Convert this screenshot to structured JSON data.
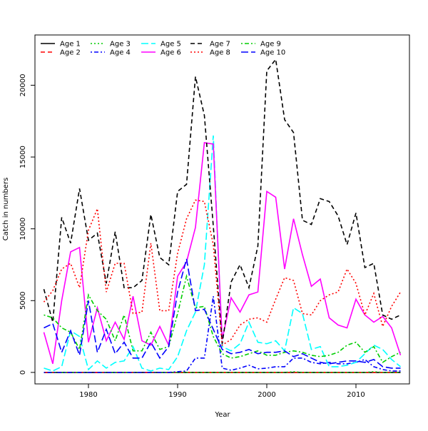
{
  "chart_data": {
    "type": "line",
    "title": "",
    "xlabel": "Year",
    "ylabel": "Catch in numbers",
    "xlim": [
      1974,
      2016
    ],
    "ylim": [
      -800,
      23500
    ],
    "x_ticks": [
      1980,
      1990,
      2000,
      2010
    ],
    "y_ticks": [
      0,
      5000,
      10000,
      15000,
      20000
    ],
    "grid": false,
    "legend_position": "top-left",
    "x": [
      1975,
      1976,
      1977,
      1978,
      1979,
      1980,
      1981,
      1982,
      1983,
      1984,
      1985,
      1986,
      1987,
      1988,
      1989,
      1990,
      1991,
      1992,
      1993,
      1994,
      1995,
      1996,
      1997,
      1998,
      1999,
      2000,
      2001,
      2002,
      2003,
      2004,
      2005,
      2006,
      2007,
      2008,
      2009,
      2010,
      2011,
      2012,
      2013,
      2014,
      2015
    ],
    "series": [
      {
        "name": "Age 1",
        "color": "#000000",
        "dash": "solid",
        "values": [
          0,
          0,
          0,
          0,
          0,
          0,
          0,
          0,
          0,
          0,
          0,
          0,
          0,
          0,
          0,
          0,
          0,
          0,
          0,
          0,
          0,
          0,
          0,
          0,
          0,
          0,
          0,
          0,
          0,
          0,
          0,
          0,
          0,
          0,
          0,
          0,
          0,
          0,
          0,
          0,
          0
        ]
      },
      {
        "name": "Age 2",
        "color": "#ff0000",
        "dash": "dashed",
        "values": [
          0,
          0,
          0,
          0,
          0,
          0,
          0,
          0,
          0,
          0,
          0,
          0,
          0,
          0,
          0,
          0,
          0,
          0,
          0,
          0,
          0,
          0,
          0,
          0,
          0,
          0,
          0,
          0,
          0,
          0,
          0,
          0,
          0,
          0,
          0,
          0,
          0,
          0,
          0,
          0,
          0
        ]
      },
      {
        "name": "Age 3",
        "color": "#00cd00",
        "dash": "dotted",
        "values": [
          0,
          0,
          0,
          0,
          0,
          0,
          0,
          0,
          0,
          0,
          0,
          0,
          0,
          0,
          0,
          0,
          0,
          0,
          0,
          0,
          0,
          0,
          0,
          0,
          0,
          0,
          0,
          0,
          50,
          0,
          0,
          0,
          0,
          0,
          0,
          0,
          0,
          50,
          0,
          0,
          0
        ]
      },
      {
        "name": "Age 4",
        "color": "#0000ff",
        "dash": "dotdash",
        "values": [
          0,
          0,
          0,
          0,
          0,
          0,
          0,
          0,
          0,
          0,
          0,
          0,
          0,
          0,
          0,
          50,
          100,
          1000,
          1000,
          5300,
          300,
          150,
          300,
          500,
          250,
          300,
          400,
          400,
          1000,
          1000,
          700,
          600,
          700,
          600,
          600,
          700,
          900,
          400,
          200,
          100,
          100
        ]
      },
      {
        "name": "Age 5",
        "color": "#00ffff",
        "dash": "longdash",
        "values": [
          300,
          100,
          400,
          2900,
          2500,
          200,
          800,
          300,
          700,
          800,
          1800,
          300,
          100,
          300,
          200,
          1100,
          2900,
          4200,
          7500,
          16500,
          1800,
          1500,
          2000,
          3500,
          2100,
          2000,
          2200,
          1500,
          4500,
          4100,
          1600,
          1800,
          400,
          400,
          500,
          700,
          1300,
          1900,
          1600,
          900,
          400
        ]
      },
      {
        "name": "Age 6",
        "color": "#ff00ff",
        "dash": "solid",
        "values": [
          2800,
          600,
          5000,
          8400,
          8700,
          2100,
          4500,
          2200,
          3500,
          2300,
          5300,
          2200,
          1900,
          3200,
          1900,
          6700,
          7700,
          10100,
          16000,
          15900,
          2300,
          5200,
          4200,
          5400,
          5600,
          12600,
          12200,
          7200,
          10700,
          8200,
          6000,
          6500,
          3800,
          3300,
          3100,
          5100,
          4000,
          3500,
          3900,
          3100,
          1200
        ]
      },
      {
        "name": "Age 7",
        "color": "#000000",
        "dash": "dashed",
        "values": [
          5800,
          3500,
          10800,
          9000,
          12800,
          9200,
          9700,
          6200,
          9800,
          5900,
          5900,
          6400,
          11000,
          8000,
          7500,
          12600,
          13100,
          20600,
          17900,
          10200,
          2000,
          6300,
          7500,
          5900,
          8800,
          21000,
          21800,
          17600,
          16700,
          10600,
          10300,
          12100,
          11900,
          10900,
          8900,
          11100,
          7300,
          7600,
          4000,
          3700,
          4000
        ]
      },
      {
        "name": "Age 8",
        "color": "#ff0000",
        "dash": "dotted",
        "values": [
          4900,
          5700,
          7200,
          7600,
          5900,
          9900,
          11400,
          5600,
          7600,
          7600,
          4100,
          4200,
          9000,
          4300,
          4300,
          8300,
          10700,
          12000,
          11900,
          8900,
          1900,
          2300,
          3300,
          3700,
          3800,
          3500,
          5100,
          6600,
          6400,
          4100,
          4000,
          5000,
          5400,
          5600,
          7200,
          6200,
          4000,
          5500,
          3200,
          4600,
          5600
        ]
      },
      {
        "name": "Age 9",
        "color": "#00cd00",
        "dash": "dotdash",
        "values": [
          4000,
          3800,
          3100,
          2800,
          1600,
          5400,
          4300,
          3700,
          2200,
          4000,
          1500,
          1500,
          2800,
          1600,
          1800,
          4100,
          6700,
          4500,
          4600,
          2500,
          1300,
          1000,
          1100,
          1300,
          1500,
          1200,
          1200,
          1400,
          1500,
          1400,
          1200,
          1100,
          1200,
          1400,
          1900,
          2100,
          1400,
          1800,
          700,
          1100,
          1400
        ]
      },
      {
        "name": "Age 10",
        "color": "#0000ff",
        "dash": "longdash",
        "values": [
          3100,
          3400,
          1400,
          2900,
          1200,
          5000,
          1400,
          3000,
          1300,
          2100,
          1000,
          1000,
          2100,
          1000,
          1800,
          5600,
          7900,
          4300,
          4400,
          3000,
          1600,
          1300,
          1400,
          1600,
          1300,
          1400,
          1400,
          1500,
          1100,
          1300,
          1000,
          700,
          600,
          700,
          800,
          800,
          700,
          900,
          400,
          300,
          300
        ]
      }
    ]
  }
}
